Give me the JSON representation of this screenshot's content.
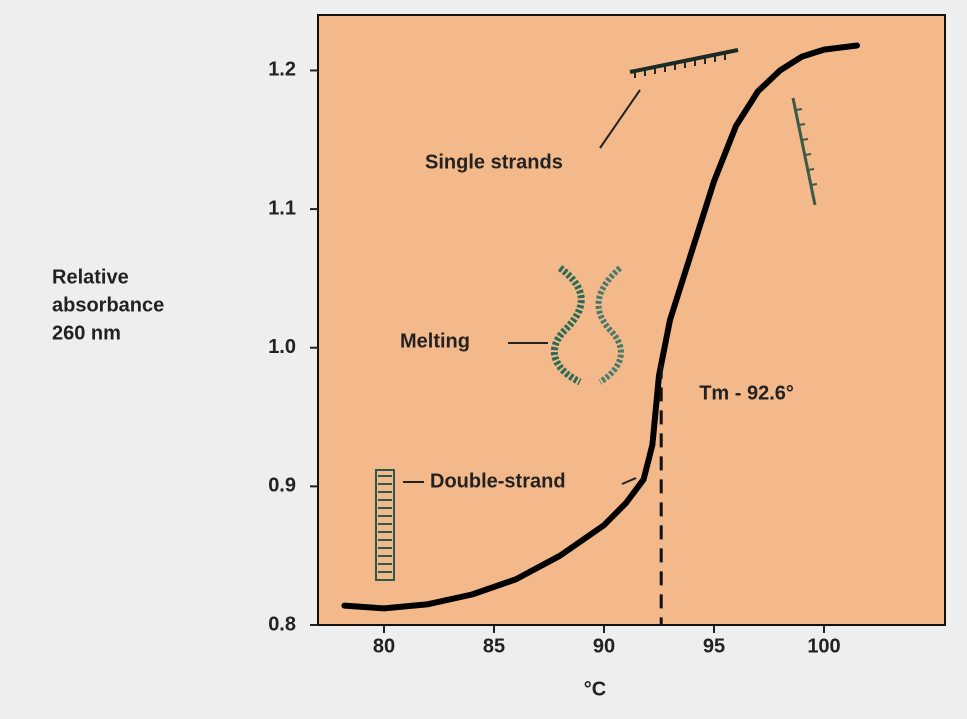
{
  "chart_data": {
    "type": "line",
    "x": [
      78.2,
      80,
      82,
      84,
      86,
      88,
      90,
      91,
      91.8,
      92.2,
      92.5,
      93,
      94,
      95,
      96,
      97,
      98,
      99,
      100,
      101.5
    ],
    "values": [
      0.814,
      0.812,
      0.815,
      0.822,
      0.833,
      0.85,
      0.872,
      0.888,
      0.905,
      0.93,
      0.98,
      1.02,
      1.07,
      1.12,
      1.16,
      1.185,
      1.2,
      1.21,
      1.215,
      1.218
    ],
    "color": "#000000",
    "xlim": [
      77,
      105.5
    ],
    "ylim": [
      0.8,
      1.24
    ],
    "xticks": [
      80,
      85,
      90,
      95,
      100
    ],
    "yticks": [
      0.8,
      0.9,
      {
        "value": 1.0,
        "label": "1.0"
      },
      1.1,
      1.2
    ],
    "xlabel": "°C",
    "ylabel": [
      "Relative",
      "absorbance",
      "260 nm"
    ],
    "vlines": [
      {
        "x": 92.6,
        "label": "Tm - 92.6°"
      }
    ],
    "annotations": [
      "Single strands",
      "Melting",
      "Double-strand"
    ],
    "background": "#f3b98a"
  }
}
